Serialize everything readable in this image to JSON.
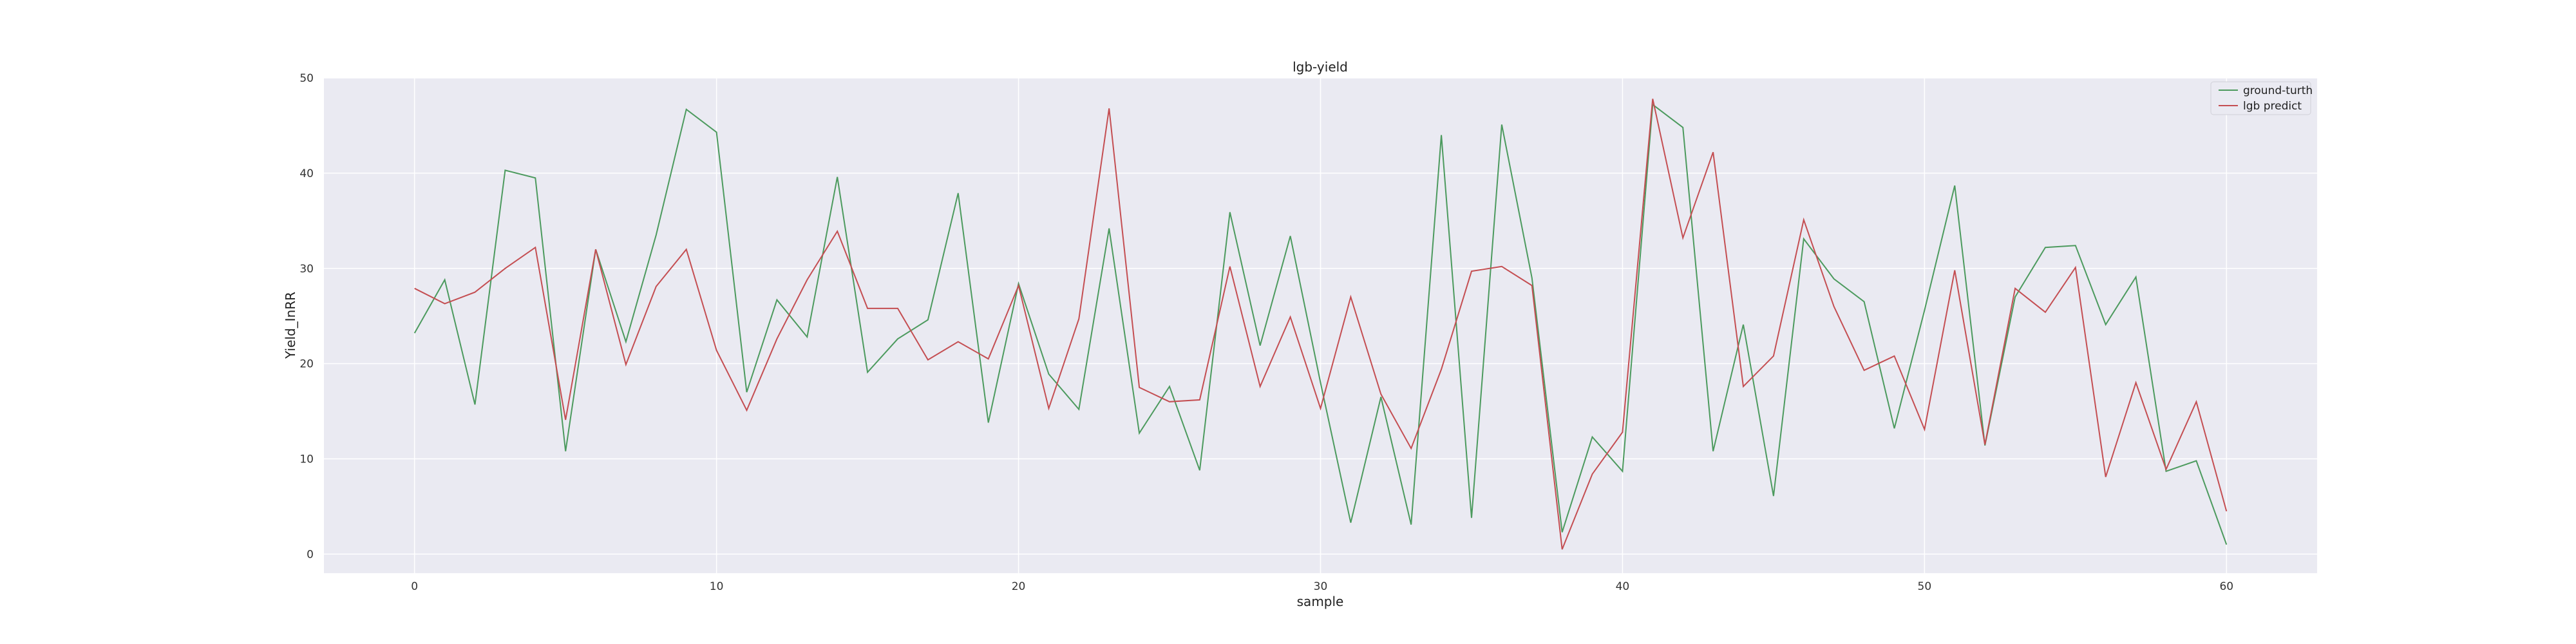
{
  "chart_data": {
    "type": "line",
    "title": "lgb-yield",
    "xlabel": "sample",
    "ylabel": "Yield_InRR",
    "xlim": [
      -3,
      63
    ],
    "ylim": [
      -2,
      50
    ],
    "xticks": [
      0,
      10,
      20,
      30,
      40,
      50,
      60
    ],
    "yticks": [
      0,
      10,
      20,
      30,
      40,
      50
    ],
    "grid": true,
    "legend_position": "top-right",
    "background_color": "#eaeaf2",
    "x": [
      0,
      1,
      2,
      3,
      4,
      5,
      6,
      7,
      8,
      9,
      10,
      11,
      12,
      13,
      14,
      15,
      16,
      17,
      18,
      19,
      20,
      21,
      22,
      23,
      24,
      25,
      26,
      27,
      28,
      29,
      30,
      31,
      32,
      33,
      34,
      35,
      36,
      37,
      38,
      39,
      40,
      41,
      42,
      43,
      44,
      45,
      46,
      47,
      48,
      49,
      50,
      51,
      52,
      53,
      54,
      55,
      56,
      57,
      58,
      59,
      60
    ],
    "series": [
      {
        "name": "ground-turth",
        "color": "#4c9a5e",
        "values": [
          23.2,
          28.8,
          15.7,
          40.3,
          39.5,
          10.8,
          32.0,
          22.3,
          33.5,
          46.7,
          44.3,
          17.0,
          26.7,
          22.8,
          39.6,
          19.1,
          22.6,
          24.6,
          37.9,
          13.8,
          28.4,
          18.9,
          15.2,
          34.2,
          12.7,
          17.6,
          8.8,
          35.9,
          21.9,
          33.4,
          18.0,
          3.3,
          16.5,
          3.1,
          44.0,
          3.8,
          45.1,
          29.0,
          2.3,
          12.3,
          8.7,
          47.2,
          44.8,
          10.8,
          24.1,
          6.1,
          33.1,
          28.9,
          26.5,
          13.2,
          25.6,
          38.7,
          11.4,
          27.0,
          32.2,
          32.4,
          24.1,
          29.1,
          8.7,
          9.8,
          1.0
        ]
      },
      {
        "name": "lgb predict",
        "color": "#c44e52",
        "values": [
          27.9,
          26.3,
          27.5,
          30.0,
          32.2,
          14.1,
          32.0,
          19.9,
          28.1,
          32.0,
          21.4,
          15.1,
          22.6,
          28.8,
          33.9,
          25.8,
          25.8,
          20.4,
          22.3,
          20.5,
          28.2,
          15.3,
          24.7,
          46.8,
          17.5,
          16.0,
          16.2,
          30.2,
          17.6,
          24.9,
          15.3,
          27.0,
          16.8,
          11.1,
          19.4,
          29.7,
          30.2,
          28.2,
          0.5,
          8.4,
          12.8,
          47.8,
          33.2,
          42.2,
          17.6,
          20.8,
          35.1,
          26.0,
          19.3,
          20.8,
          13.1,
          29.8,
          11.5,
          27.9,
          25.4,
          30.1,
          8.1,
          18.0,
          8.9,
          16.0,
          4.5
        ]
      }
    ]
  }
}
